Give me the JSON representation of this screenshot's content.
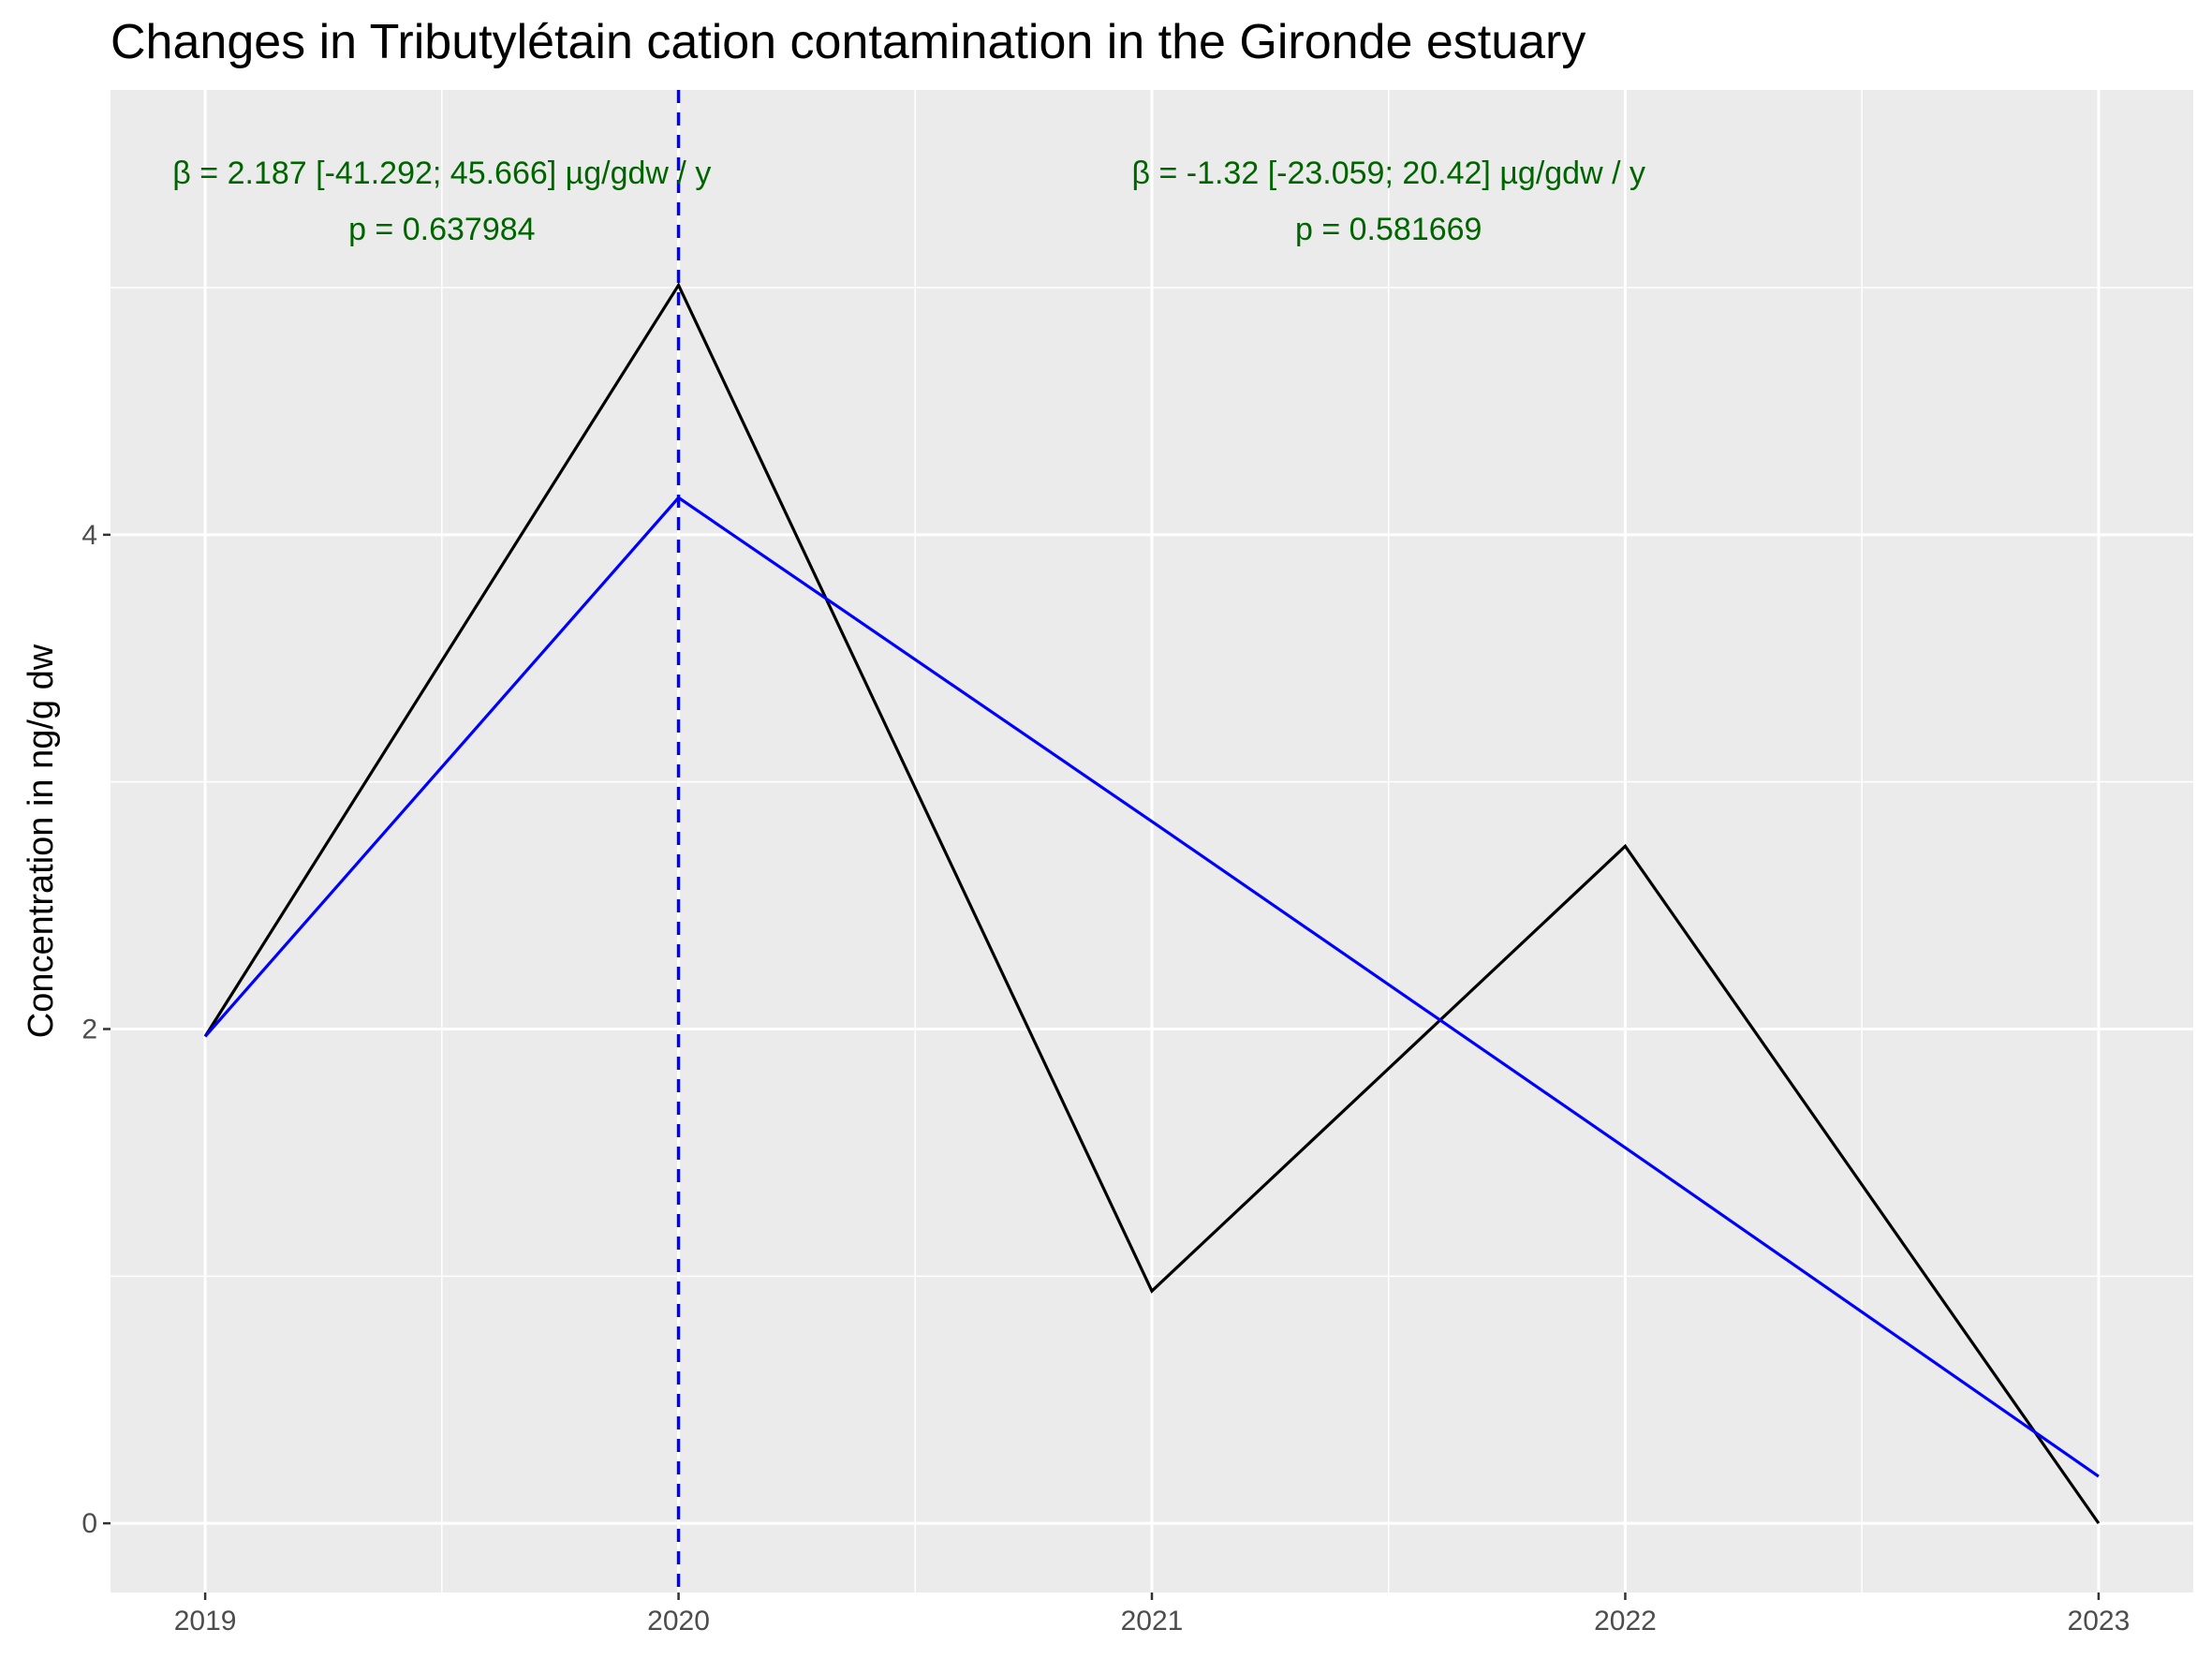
{
  "chart_data": {
    "type": "line",
    "title": "Changes in Tributylétain cation contamination in the Gironde estuary",
    "xlabel": "",
    "ylabel": "Concentration in ng/g dw",
    "x": [
      2019,
      2020,
      2021,
      2022,
      2023
    ],
    "x_ticks": [
      "2019",
      "2020",
      "2021",
      "2022",
      "2023"
    ],
    "y_ticks": [
      "0",
      "2",
      "4"
    ],
    "xlim": [
      2018.8,
      2023.2
    ],
    "ylim": [
      -0.28,
      5.8
    ],
    "grid": true,
    "series": [
      {
        "color": "#000000",
        "values": [
          1.97,
          5.01,
          0.94,
          2.74,
          0.0
        ]
      },
      {
        "color": "#0000ff",
        "values": [
          1.97,
          4.15,
          2.84,
          1.52,
          0.19
        ]
      }
    ],
    "breakpoint": {
      "x": 2020,
      "color": "#0000ff"
    },
    "annotations": [
      {
        "line1": "β = 2.187 [-41.292; 45.666] µg/gdw / y",
        "line2": "p = 0.637984",
        "x": 2019.5,
        "color": "#006400"
      },
      {
        "line1": "β = -1.32 [-23.059; 20.42] µg/gdw / y",
        "line2": "p = 0.581669",
        "x": 2021.5,
        "color": "#006400"
      }
    ]
  }
}
